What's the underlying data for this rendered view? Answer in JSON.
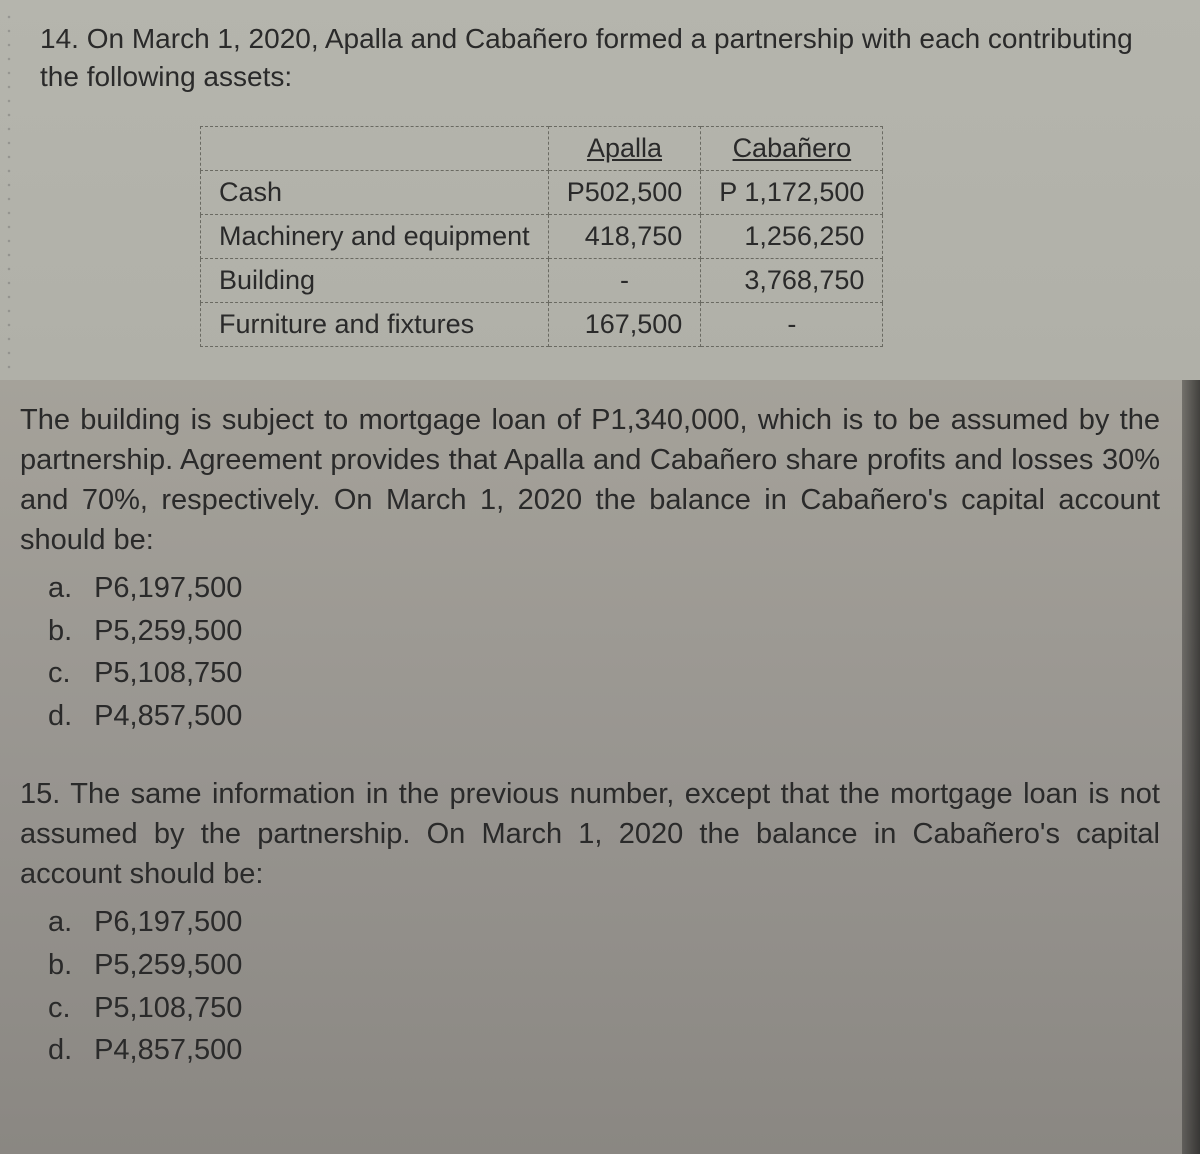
{
  "q14": {
    "number": "14.",
    "intro": "On March 1, 2020, Apalla and Cabañero formed a partnership with each contributing the following assets:",
    "table": {
      "col1_header": "Apalla",
      "col2_header": "Cabañero",
      "rows": [
        {
          "label": "Cash",
          "c1": "P502,500",
          "c2": "P 1,172,500"
        },
        {
          "label": "Machinery and equipment",
          "c1": "418,750",
          "c2": "1,256,250"
        },
        {
          "label": "Building",
          "c1": "-",
          "c2": "3,768,750"
        },
        {
          "label": "Furniture and fixtures",
          "c1": "167,500",
          "c2": "-"
        }
      ]
    },
    "body": "The building is subject to mortgage loan of P1,340,000, which is to be assumed by the partnership. Agreement provides that Apalla and Cabañero share profits and losses 30% and 70%, respectively. On March 1, 2020 the balance in Cabañero's capital account should be:",
    "options": [
      {
        "label": "a.",
        "value": "P6,197,500"
      },
      {
        "label": "b.",
        "value": "P5,259,500"
      },
      {
        "label": "c.",
        "value": "P5,108,750"
      },
      {
        "label": "d.",
        "value": "P4,857,500"
      }
    ]
  },
  "q15": {
    "number": "15.",
    "intro": "The same information in the previous number, except that the mortgage loan is not assumed by the partnership. On March 1, 2020 the balance in Cabañero's capital account should be:",
    "options": [
      {
        "label": "a.",
        "value": "P6,197,500"
      },
      {
        "label": "b.",
        "value": "P5,259,500"
      },
      {
        "label": "c.",
        "value": "P5,108,750"
      },
      {
        "label": "d.",
        "value": "P4,857,500"
      }
    ]
  },
  "colors": {
    "upper_bg": "#b0b0a8",
    "lower_bg": "#989590",
    "text": "#2a2a2a",
    "table_border": "#6a6a62"
  }
}
